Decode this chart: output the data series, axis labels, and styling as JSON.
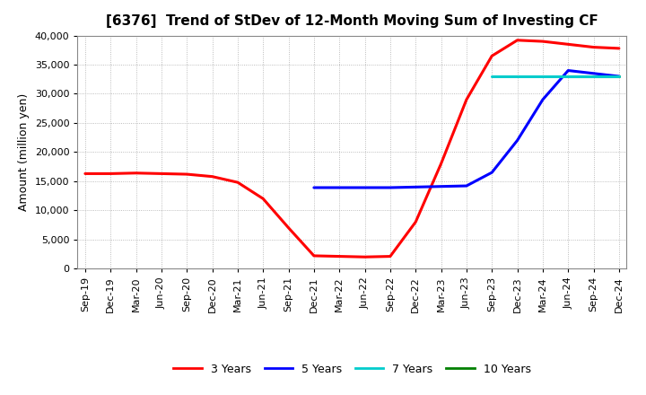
{
  "title": "[6376]  Trend of StDev of 12-Month Moving Sum of Investing CF",
  "ylabel": "Amount (million yen)",
  "ylim": [
    0,
    40000
  ],
  "yticks": [
    0,
    5000,
    10000,
    15000,
    20000,
    25000,
    30000,
    35000,
    40000
  ],
  "xtick_labels": [
    "Sep-19",
    "Dec-19",
    "Mar-20",
    "Jun-20",
    "Sep-20",
    "Dec-20",
    "Mar-21",
    "Jun-21",
    "Sep-21",
    "Dec-21",
    "Mar-22",
    "Jun-22",
    "Sep-22",
    "Dec-22",
    "Mar-23",
    "Jun-23",
    "Sep-23",
    "Dec-23",
    "Mar-24",
    "Jun-24",
    "Sep-24",
    "Dec-24"
  ],
  "series": {
    "3 Years": {
      "color": "#FF0000",
      "linewidth": 2.2,
      "x": [
        0,
        1,
        2,
        3,
        4,
        5,
        6,
        7,
        8,
        9,
        10,
        11,
        12,
        13,
        14,
        15,
        16,
        17,
        18,
        19,
        20,
        21
      ],
      "y": [
        16300,
        16300,
        16400,
        16300,
        16200,
        15800,
        14800,
        12000,
        7000,
        2200,
        2100,
        2000,
        2100,
        8000,
        18000,
        29000,
        36500,
        39200,
        39000,
        38500,
        38000,
        37800
      ]
    },
    "5 Years": {
      "color": "#0000FF",
      "linewidth": 2.2,
      "x": [
        9,
        10,
        11,
        12,
        13,
        14,
        15,
        16,
        17,
        18,
        19,
        20,
        21
      ],
      "y": [
        13900,
        13900,
        13900,
        13900,
        14000,
        14100,
        14200,
        16500,
        22000,
        29000,
        34000,
        33500,
        33000
      ]
    },
    "7 Years": {
      "color": "#00CCCC",
      "linewidth": 2.2,
      "x": [
        16,
        17,
        18,
        19,
        20,
        21
      ],
      "y": [
        33000,
        33000,
        33000,
        33000,
        33000,
        33000
      ]
    },
    "10 Years": {
      "color": "#008000",
      "linewidth": 2.2,
      "x": [
        19,
        20,
        21
      ],
      "y": [
        33000,
        33000,
        33000
      ]
    }
  },
  "background_color": "#FFFFFF",
  "plot_bg_color": "#FFFFFF",
  "grid_color": "#AAAAAA",
  "title_fontsize": 11,
  "axis_fontsize": 9,
  "tick_fontsize": 8
}
